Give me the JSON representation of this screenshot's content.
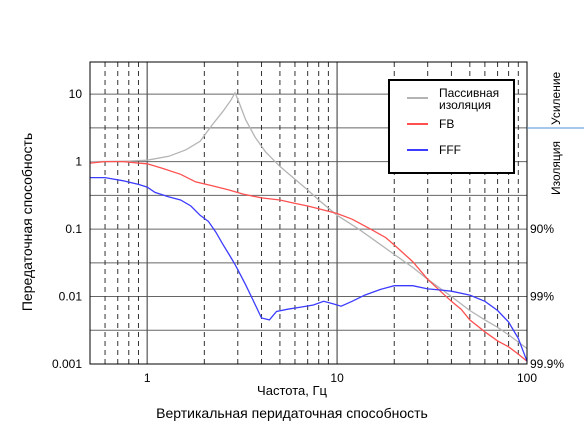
{
  "chart_data": {
    "type": "line",
    "title": "Вертикальная перидаточная способность",
    "xlabel": "Частота, Гц",
    "ylabel": "Передаточная способность",
    "x_scale": "log",
    "y_scale": "log",
    "xlim": [
      0.5,
      100
    ],
    "ylim": [
      0.001,
      30
    ],
    "grid": true,
    "x_ticks": [
      {
        "value": 1,
        "label": "1"
      },
      {
        "value": 10,
        "label": "10"
      },
      {
        "value": 100,
        "label": "100"
      }
    ],
    "y_ticks": [
      {
        "value": 10,
        "label": "10"
      },
      {
        "value": 1,
        "label": "1"
      },
      {
        "value": 0.1,
        "label": "0.1"
      },
      {
        "value": 0.01,
        "label": "0.01"
      },
      {
        "value": 0.001,
        "label": "0.001"
      }
    ],
    "right_labels": [
      {
        "value": 0.1,
        "label": "90%"
      },
      {
        "value": 0.01,
        "label": "99%"
      },
      {
        "value": 0.001,
        "label": "99.9%"
      }
    ],
    "side_labels": {
      "upper": "Усиление",
      "lower": "Изоляция"
    },
    "legend_position": "top-right",
    "series": [
      {
        "name": "Пассивная изоляция",
        "color": "#b4b4b4",
        "points": [
          [
            0.5,
            1.0
          ],
          [
            0.8,
            1.02
          ],
          [
            1.0,
            1.05
          ],
          [
            1.3,
            1.2
          ],
          [
            1.6,
            1.5
          ],
          [
            1.9,
            2.0
          ],
          [
            2.2,
            3.5
          ],
          [
            2.5,
            5.5
          ],
          [
            2.75,
            8.0
          ],
          [
            2.9,
            10.5
          ],
          [
            3.05,
            7.5
          ],
          [
            3.3,
            4.2
          ],
          [
            3.7,
            2.3
          ],
          [
            4.2,
            1.4
          ],
          [
            5.0,
            0.85
          ],
          [
            6.0,
            0.55
          ],
          [
            7.0,
            0.38
          ],
          [
            8.0,
            0.27
          ],
          [
            10.0,
            0.16
          ],
          [
            13.0,
            0.1
          ],
          [
            16.0,
            0.066
          ],
          [
            20.0,
            0.042
          ],
          [
            25.0,
            0.027
          ],
          [
            30.0,
            0.018
          ],
          [
            40.0,
            0.01
          ],
          [
            50.0,
            0.0062
          ],
          [
            60.0,
            0.0045
          ],
          [
            70.0,
            0.0035
          ],
          [
            80.0,
            0.0027
          ],
          [
            100.0,
            0.0017
          ]
        ]
      },
      {
        "name": "FB",
        "color": "#ff5050",
        "points": [
          [
            0.5,
            0.95
          ],
          [
            0.6,
            1.0
          ],
          [
            0.75,
            1.0
          ],
          [
            0.9,
            0.95
          ],
          [
            1.0,
            0.93
          ],
          [
            1.2,
            0.8
          ],
          [
            1.5,
            0.65
          ],
          [
            1.8,
            0.5
          ],
          [
            2.2,
            0.44
          ],
          [
            2.7,
            0.38
          ],
          [
            3.2,
            0.33
          ],
          [
            4.0,
            0.29
          ],
          [
            5.0,
            0.27
          ],
          [
            6.0,
            0.24
          ],
          [
            7.0,
            0.22
          ],
          [
            8.0,
            0.2
          ],
          [
            10.0,
            0.17
          ],
          [
            12.0,
            0.14
          ],
          [
            15.0,
            0.1
          ],
          [
            18.0,
            0.075
          ],
          [
            20.0,
            0.058
          ],
          [
            25.0,
            0.033
          ],
          [
            30.0,
            0.018
          ],
          [
            35.0,
            0.012
          ],
          [
            40.0,
            0.0085
          ],
          [
            45.0,
            0.0065
          ],
          [
            50.0,
            0.0045
          ],
          [
            60.0,
            0.003
          ],
          [
            70.0,
            0.0022
          ],
          [
            80.0,
            0.0018
          ],
          [
            90.0,
            0.0014
          ],
          [
            100.0,
            0.0011
          ]
        ]
      },
      {
        "name": "FFF",
        "color": "#3c3cff",
        "points": [
          [
            0.5,
            0.58
          ],
          [
            0.6,
            0.58
          ],
          [
            0.75,
            0.52
          ],
          [
            0.9,
            0.46
          ],
          [
            1.0,
            0.42
          ],
          [
            1.1,
            0.35
          ],
          [
            1.3,
            0.3
          ],
          [
            1.5,
            0.27
          ],
          [
            1.7,
            0.22
          ],
          [
            1.9,
            0.16
          ],
          [
            2.1,
            0.13
          ],
          [
            2.3,
            0.09
          ],
          [
            2.5,
            0.06
          ],
          [
            2.7,
            0.042
          ],
          [
            2.9,
            0.03
          ],
          [
            3.0,
            0.025
          ],
          [
            3.3,
            0.015
          ],
          [
            3.6,
            0.009
          ],
          [
            4.0,
            0.0048
          ],
          [
            4.4,
            0.0045
          ],
          [
            4.8,
            0.006
          ],
          [
            5.5,
            0.0065
          ],
          [
            6.5,
            0.007
          ],
          [
            7.5,
            0.0075
          ],
          [
            8.5,
            0.0085
          ],
          [
            9.5,
            0.0078
          ],
          [
            10.5,
            0.0072
          ],
          [
            12.0,
            0.0085
          ],
          [
            14.0,
            0.0105
          ],
          [
            17.0,
            0.0128
          ],
          [
            20.0,
            0.0145
          ],
          [
            25.0,
            0.0145
          ],
          [
            30.0,
            0.013
          ],
          [
            35.0,
            0.0125
          ],
          [
            40.0,
            0.012
          ],
          [
            50.0,
            0.0105
          ],
          [
            60.0,
            0.0085
          ],
          [
            70.0,
            0.0062
          ],
          [
            80.0,
            0.0042
          ],
          [
            90.0,
            0.0024
          ],
          [
            95.0,
            0.0016
          ],
          [
            100.0,
            0.0011
          ]
        ]
      }
    ]
  }
}
